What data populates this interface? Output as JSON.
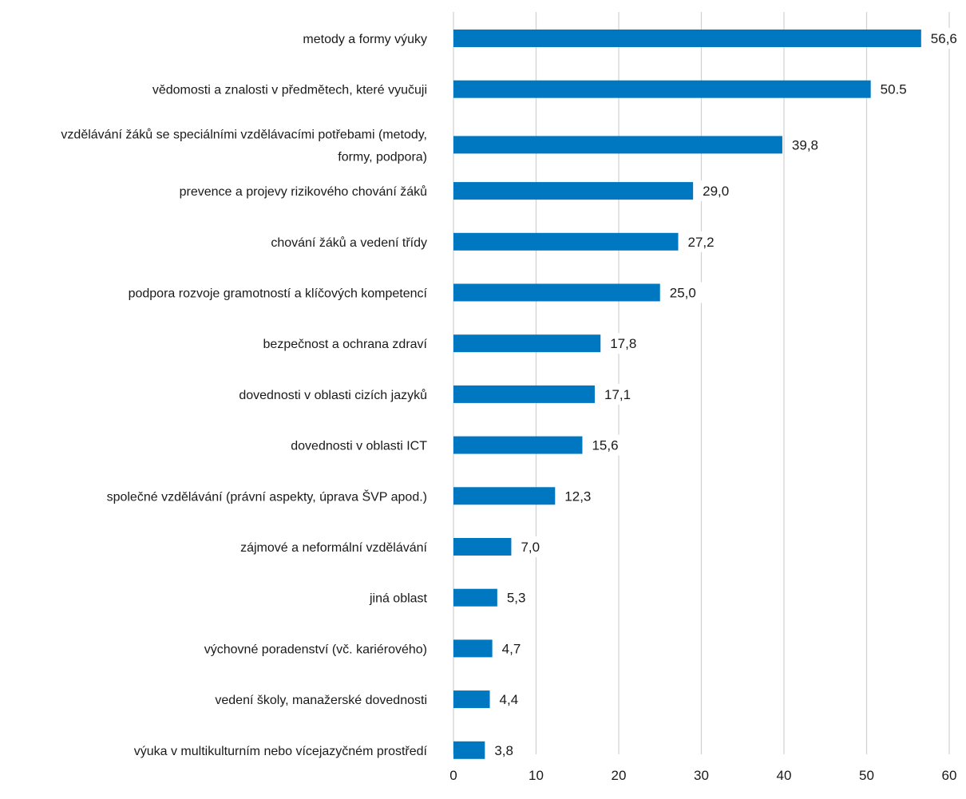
{
  "chart_data": {
    "type": "bar",
    "orientation": "horizontal",
    "categories": [
      "metody a formy výuky",
      "vědomosti a znalosti v předmětech, které vyučuji",
      "vzdělávání žáků se speciálními vzdělávacími potřebami (metody, formy, podpora)",
      "prevence a projevy rizikového chování žáků",
      "chování žáků a vedení třídy",
      "podpora rozvoje gramotností a klíčových kompetencí",
      "bezpečnost a ochrana zdraví",
      "dovednosti v oblasti cizích jazyků",
      "dovednosti v oblasti ICT",
      "společné vzdělávání (právní aspekty, úprava ŠVP apod.)",
      "zájmové a neformální vzdělávání",
      "jiná oblast",
      "výchovné poradenství (vč. kariérového)",
      "vedení školy, manažerské dovednosti",
      "výuka v multikulturním nebo vícejazyčném prostředí"
    ],
    "category_lines": [
      [
        "metody a formy výuky"
      ],
      [
        "vědomosti a znalosti v předmětech, které vyučuji"
      ],
      [
        "vzdělávání žáků se speciálními vzdělávacími potřebami (metody,",
        "formy, podpora)"
      ],
      [
        "prevence a projevy rizikového chování žáků"
      ],
      [
        "chování žáků a vedení třídy"
      ],
      [
        "podpora rozvoje gramotností a klíčových kompetencí"
      ],
      [
        "bezpečnost a ochrana zdraví"
      ],
      [
        "dovednosti v oblasti cizích jazyků"
      ],
      [
        "dovednosti v oblasti ICT"
      ],
      [
        "společné vzdělávání (právní aspekty, úprava ŠVP apod.)"
      ],
      [
        "zájmové a neformální vzdělávání"
      ],
      [
        "jiná oblast"
      ],
      [
        "výchovné poradenství (vč. kariérového)"
      ],
      [
        "vedení školy, manažerské dovednosti"
      ],
      [
        "výuka v multikulturním nebo vícejazyčném prostředí"
      ]
    ],
    "values": [
      56.6,
      50.5,
      39.8,
      29.0,
      27.2,
      25.0,
      17.8,
      17.1,
      15.6,
      12.3,
      7.0,
      5.3,
      4.7,
      4.4,
      3.8
    ],
    "value_labels": [
      "56,6",
      "50.5",
      "39,8",
      "29,0",
      "27,2",
      "25,0",
      "17,8",
      "17,1",
      "15,6",
      "12,3",
      "7,0",
      "5,3",
      "4,7",
      "4,4",
      "3,8"
    ],
    "xlim": [
      0,
      60
    ],
    "xticks": [
      0,
      10,
      20,
      30,
      40,
      50,
      60
    ],
    "grid": "vertical",
    "legend": "none",
    "bar_color": "#0078c1",
    "grid_color": "#d0d0d0"
  }
}
